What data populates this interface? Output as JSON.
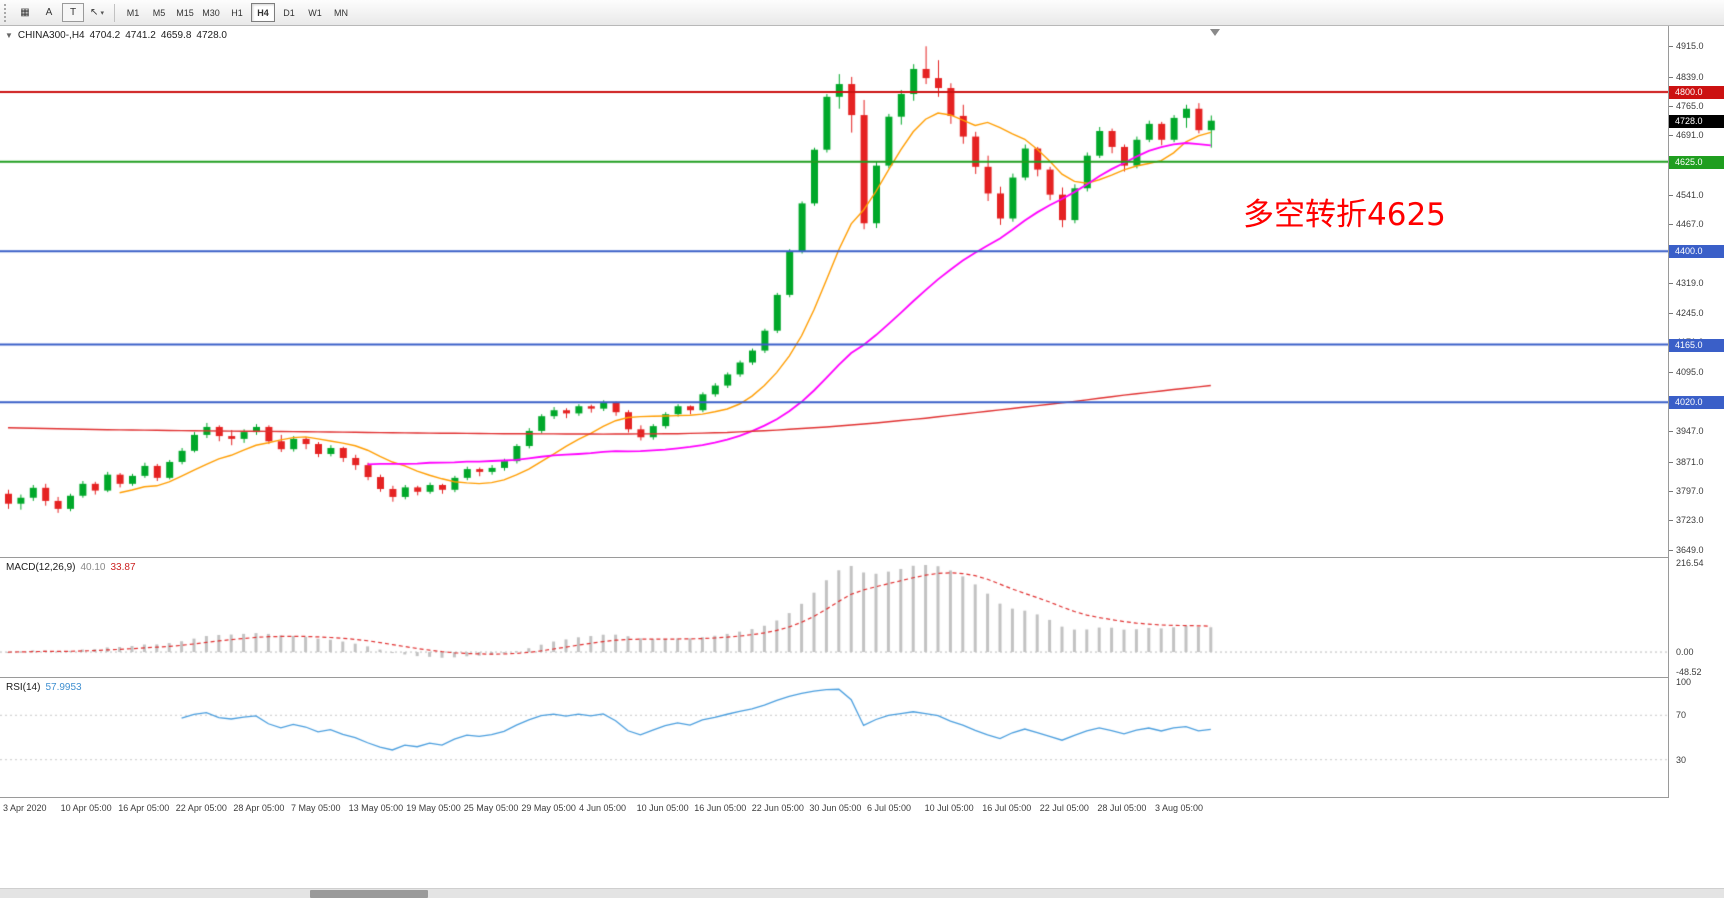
{
  "toolbar": {
    "tools": [
      {
        "name": "chart-grid",
        "glyph": "▦"
      },
      {
        "name": "text-a",
        "glyph": "A"
      },
      {
        "name": "text-t",
        "glyph": "T",
        "boxed": true
      },
      {
        "name": "pointer-tool",
        "glyph": "↖",
        "dropdown": "▾"
      }
    ],
    "timeframes": [
      "M1",
      "M5",
      "M15",
      "M30",
      "H1",
      "H4",
      "D1",
      "W1",
      "MN"
    ],
    "active_timeframe": "H4"
  },
  "chart_header": {
    "collapse_icon": "▼",
    "symbol": "CHINA300-,H4",
    "open": "4704.2",
    "high": "4741.2",
    "low": "4659.8",
    "close": "4728.0"
  },
  "scrollbar": {
    "thumb_left": 310,
    "thumb_width": 118
  },
  "chart_data": {
    "type": "candlestick",
    "symbol": "CHINA300-",
    "timeframe": "H4",
    "y_range": [
      3631,
      4966
    ],
    "y_ticks": [
      4915,
      4839,
      4765,
      4691,
      4617,
      4541,
      4467,
      4393,
      4319,
      4245,
      4171,
      4095,
      4021,
      3947,
      3871,
      3797,
      3723,
      3649
    ],
    "time_labels": [
      "3 Apr 2020",
      "10 Apr 05:00",
      "16 Apr 05:00",
      "22 Apr 05:00",
      "28 Apr 05:00",
      "7 May 05:00",
      "13 May 05:00",
      "19 May 05:00",
      "25 May 05:00",
      "29 May 05:00",
      "4 Jun 05:00",
      "10 Jun 05:00",
      "16 Jun 05:00",
      "22 Jun 05:00",
      "30 Jun 05:00",
      "6 Jul 05:00",
      "10 Jul 05:00",
      "16 Jul 05:00",
      "22 Jul 05:00",
      "28 Jul 05:00",
      "3 Aug 05:00"
    ],
    "candles": [
      [
        3790,
        3800,
        3752,
        3765
      ],
      [
        3765,
        3788,
        3750,
        3780
      ],
      [
        3780,
        3812,
        3772,
        3805
      ],
      [
        3805,
        3815,
        3760,
        3772
      ],
      [
        3772,
        3782,
        3742,
        3752
      ],
      [
        3752,
        3790,
        3746,
        3785
      ],
      [
        3785,
        3822,
        3780,
        3815
      ],
      [
        3815,
        3820,
        3788,
        3798
      ],
      [
        3798,
        3845,
        3794,
        3838
      ],
      [
        3838,
        3842,
        3806,
        3815
      ],
      [
        3815,
        3840,
        3810,
        3835
      ],
      [
        3835,
        3868,
        3830,
        3860
      ],
      [
        3860,
        3865,
        3822,
        3830
      ],
      [
        3830,
        3875,
        3826,
        3870
      ],
      [
        3870,
        3905,
        3864,
        3898
      ],
      [
        3898,
        3945,
        3894,
        3938
      ],
      [
        3938,
        3968,
        3930,
        3958
      ],
      [
        3958,
        3962,
        3922,
        3935
      ],
      [
        3935,
        3950,
        3912,
        3928
      ],
      [
        3928,
        3952,
        3918,
        3945
      ],
      [
        3945,
        3965,
        3938,
        3958
      ],
      [
        3958,
        3962,
        3915,
        3922
      ],
      [
        3922,
        3938,
        3895,
        3902
      ],
      [
        3902,
        3935,
        3896,
        3928
      ],
      [
        3928,
        3932,
        3902,
        3915
      ],
      [
        3915,
        3920,
        3882,
        3890
      ],
      [
        3890,
        3912,
        3884,
        3905
      ],
      [
        3905,
        3908,
        3870,
        3880
      ],
      [
        3880,
        3888,
        3850,
        3862
      ],
      [
        3862,
        3868,
        3824,
        3832
      ],
      [
        3832,
        3838,
        3795,
        3802
      ],
      [
        3802,
        3810,
        3770,
        3782
      ],
      [
        3782,
        3812,
        3776,
        3806
      ],
      [
        3806,
        3810,
        3786,
        3795
      ],
      [
        3795,
        3818,
        3790,
        3812
      ],
      [
        3812,
        3815,
        3790,
        3800
      ],
      [
        3800,
        3835,
        3794,
        3830
      ],
      [
        3830,
        3858,
        3824,
        3852
      ],
      [
        3852,
        3856,
        3834,
        3845
      ],
      [
        3845,
        3862,
        3838,
        3855
      ],
      [
        3855,
        3878,
        3848,
        3872
      ],
      [
        3872,
        3915,
        3866,
        3910
      ],
      [
        3910,
        3955,
        3904,
        3948
      ],
      [
        3948,
        3990,
        3942,
        3985
      ],
      [
        3985,
        4008,
        3978,
        4000
      ],
      [
        4000,
        4005,
        3980,
        3992
      ],
      [
        3992,
        4015,
        3986,
        4010
      ],
      [
        4010,
        4014,
        3994,
        4004
      ],
      [
        4004,
        4025,
        3998,
        4020
      ],
      [
        4020,
        4022,
        3986,
        3995
      ],
      [
        3995,
        4000,
        3944,
        3952
      ],
      [
        3952,
        3962,
        3924,
        3932
      ],
      [
        3932,
        3965,
        3926,
        3960
      ],
      [
        3960,
        3995,
        3954,
        3990
      ],
      [
        3990,
        4015,
        3984,
        4010
      ],
      [
        4010,
        4012,
        3990,
        4000
      ],
      [
        4000,
        4045,
        3995,
        4040
      ],
      [
        4040,
        4068,
        4034,
        4062
      ],
      [
        4062,
        4095,
        4056,
        4090
      ],
      [
        4090,
        4125,
        4084,
        4120
      ],
      [
        4120,
        4155,
        4114,
        4150
      ],
      [
        4150,
        4205,
        4144,
        4200
      ],
      [
        4200,
        4295,
        4194,
        4290
      ],
      [
        4290,
        4405,
        4284,
        4400
      ],
      [
        4400,
        4525,
        4394,
        4520
      ],
      [
        4520,
        4660,
        4514,
        4655
      ],
      [
        4655,
        4795,
        4648,
        4788
      ],
      [
        4788,
        4845,
        4758,
        4820
      ],
      [
        4820,
        4838,
        4698,
        4742
      ],
      [
        4742,
        4780,
        4455,
        4470
      ],
      [
        4470,
        4625,
        4458,
        4615
      ],
      [
        4615,
        4745,
        4608,
        4738
      ],
      [
        4738,
        4805,
        4718,
        4795
      ],
      [
        4795,
        4870,
        4778,
        4858
      ],
      [
        4858,
        4915,
        4820,
        4835
      ],
      [
        4835,
        4880,
        4788,
        4810
      ],
      [
        4810,
        4822,
        4720,
        4740
      ],
      [
        4740,
        4768,
        4670,
        4688
      ],
      [
        4688,
        4700,
        4594,
        4612
      ],
      [
        4612,
        4640,
        4526,
        4545
      ],
      [
        4545,
        4562,
        4466,
        4482
      ],
      [
        4482,
        4595,
        4474,
        4585
      ],
      [
        4585,
        4668,
        4578,
        4658
      ],
      [
        4658,
        4662,
        4588,
        4605
      ],
      [
        4605,
        4612,
        4528,
        4542
      ],
      [
        4542,
        4560,
        4460,
        4478
      ],
      [
        4478,
        4568,
        4470,
        4558
      ],
      [
        4558,
        4648,
        4550,
        4640
      ],
      [
        4640,
        4712,
        4634,
        4702
      ],
      [
        4702,
        4708,
        4646,
        4662
      ],
      [
        4662,
        4668,
        4600,
        4615
      ],
      [
        4615,
        4688,
        4608,
        4680
      ],
      [
        4680,
        4728,
        4674,
        4720
      ],
      [
        4720,
        4725,
        4666,
        4680
      ],
      [
        4680,
        4742,
        4674,
        4735
      ],
      [
        4735,
        4768,
        4710,
        4758
      ],
      [
        4758,
        4772,
        4696,
        4704
      ],
      [
        4704,
        4741,
        4660,
        4728
      ]
    ],
    "horizontal_lines": [
      {
        "label": "4800.0",
        "value": 4800,
        "color": "#cc1111"
      },
      {
        "label": "4625.0",
        "value": 4625,
        "color": "#1f9e1f"
      },
      {
        "label": "4400.0",
        "value": 4400,
        "color": "#3a5fc8"
      },
      {
        "label": "4165.0",
        "value": 4165,
        "color": "#3a5fc8"
      },
      {
        "label": "4020.0",
        "value": 4020,
        "color": "#3a5fc8"
      }
    ],
    "current_price": {
      "label": "4728.0",
      "value": 4728,
      "bg": "#000000"
    },
    "candle_colors": {
      "up": "#00a82a",
      "down": "#e52222"
    },
    "moving_averages": [
      {
        "name": "fast",
        "type": "sma",
        "period": 10,
        "color": "#ff9d00"
      },
      {
        "name": "mid",
        "type": "sma",
        "period": 30,
        "color": "#ff00ff"
      },
      {
        "name": "slow",
        "type": "points",
        "color": "#e03030",
        "points": [
          [
            0,
            3956
          ],
          [
            8,
            3951
          ],
          [
            16,
            3948
          ],
          [
            24,
            3946
          ],
          [
            32,
            3943
          ],
          [
            40,
            3941
          ],
          [
            48,
            3940
          ],
          [
            54,
            3941
          ],
          [
            58,
            3944
          ],
          [
            62,
            3950
          ],
          [
            66,
            3958
          ],
          [
            70,
            3968
          ],
          [
            74,
            3980
          ],
          [
            78,
            3994
          ],
          [
            82,
            4008
          ],
          [
            86,
            4022
          ],
          [
            90,
            4038
          ],
          [
            94,
            4052
          ],
          [
            97,
            4062
          ]
        ]
      }
    ],
    "indicators": {
      "macd": {
        "label": "MACD(12,26,9)",
        "main_value": "40.10",
        "signal_value": "33.87",
        "axis_labels": [
          "216.54",
          "0.00",
          "-48.52"
        ],
        "axis_values": [
          216.54,
          0,
          -48.52
        ],
        "range": [
          -48.52,
          216.54
        ],
        "histogram_color": "#c2c2c2",
        "signal_color": "#e03030"
      },
      "rsi": {
        "label": "RSI(14)",
        "value": "57.9953",
        "axis_labels": [
          "100",
          "70",
          "30"
        ],
        "axis_values": [
          100,
          70,
          30
        ],
        "levels": [
          70,
          30
        ],
        "range": [
          0,
          100
        ],
        "line_color": "#4a9ede"
      }
    },
    "annotation": {
      "text": "多空转折4625",
      "color": "#ff0000"
    }
  }
}
